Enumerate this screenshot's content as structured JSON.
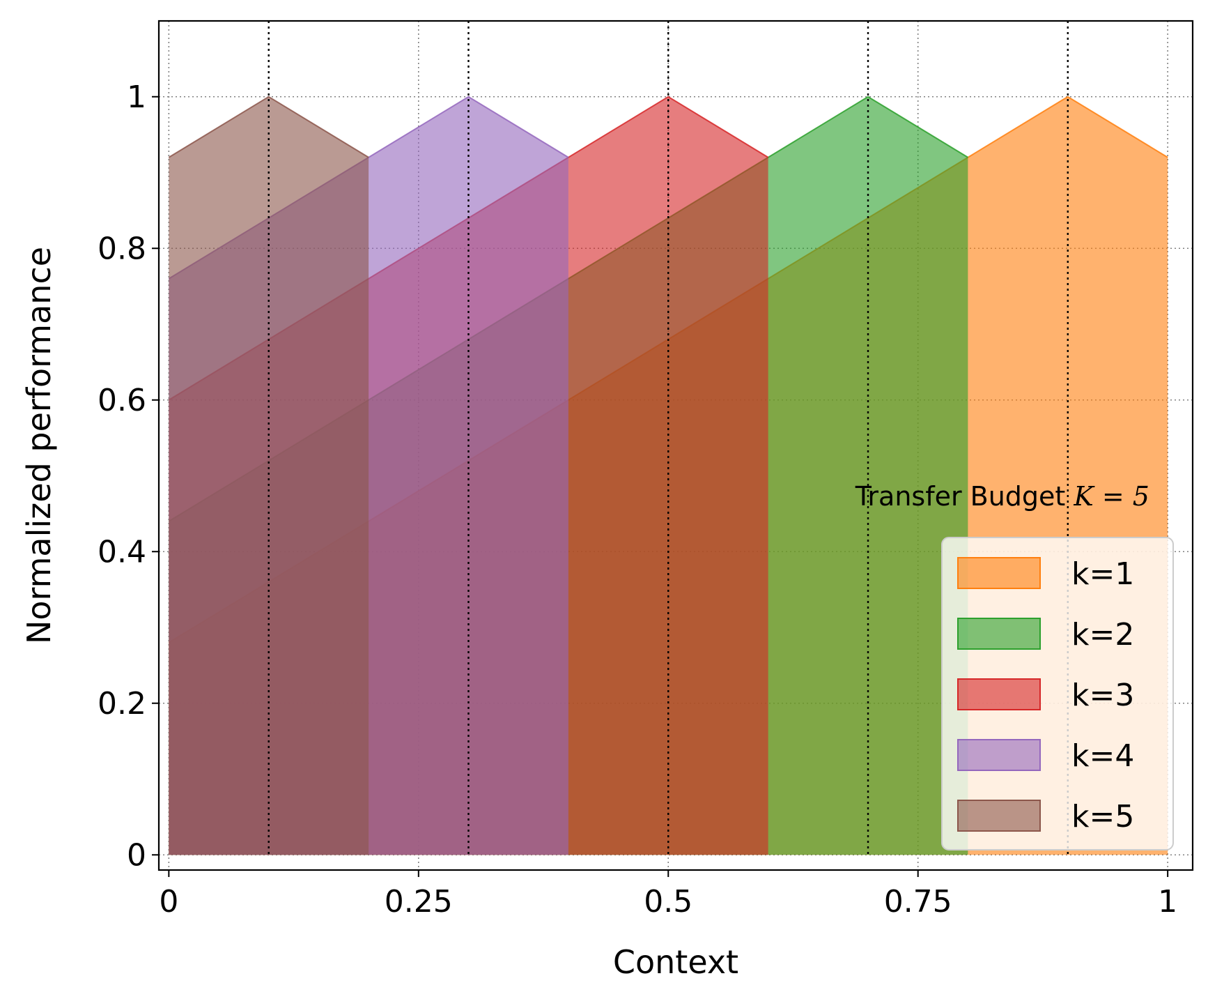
{
  "chart_data": {
    "type": "area",
    "title": "",
    "xlabel": "Context",
    "ylabel": "Normalized performance",
    "xlim": [
      -0.01,
      1.025
    ],
    "ylim": [
      -0.02,
      1.1
    ],
    "xticks": [
      0,
      0.25,
      0.5,
      0.75,
      1
    ],
    "xtick_labels": [
      "0",
      "0.25",
      "0.5",
      "0.75",
      "1"
    ],
    "yticks": [
      0,
      0.2,
      0.4,
      0.6,
      0.8,
      1
    ],
    "ytick_labels": [
      "0",
      "0.2",
      "0.4",
      "0.6",
      "0.8",
      "1"
    ],
    "grid": true,
    "context_lines": [
      0.1,
      0.3,
      0.5,
      0.7,
      0.9
    ],
    "annotation": {
      "text": "Transfer Budget ",
      "math": "K = 5"
    },
    "legend": {
      "placement": "lower-right"
    },
    "series": [
      {
        "name": "k=1",
        "color": "#ff7f0e",
        "points": [
          [
            0,
            0.28
          ],
          [
            0.9,
            1.0
          ],
          [
            1.0,
            0.92
          ]
        ]
      },
      {
        "name": "k=2",
        "color": "#2ca02c",
        "points": [
          [
            0,
            0.44
          ],
          [
            0.7,
            1.0
          ],
          [
            0.8,
            0.92
          ]
        ]
      },
      {
        "name": "k=3",
        "color": "#d62728",
        "points": [
          [
            0,
            0.6
          ],
          [
            0.5,
            1.0
          ],
          [
            0.6,
            0.92
          ]
        ]
      },
      {
        "name": "k=4",
        "color": "#9467bd",
        "points": [
          [
            0,
            0.76
          ],
          [
            0.3,
            1.0
          ],
          [
            0.4,
            0.92
          ]
        ]
      },
      {
        "name": "k=5",
        "color": "#8c564b",
        "points": [
          [
            0,
            0.92
          ],
          [
            0.1,
            1.0
          ],
          [
            0.2,
            0.92
          ]
        ]
      }
    ]
  }
}
